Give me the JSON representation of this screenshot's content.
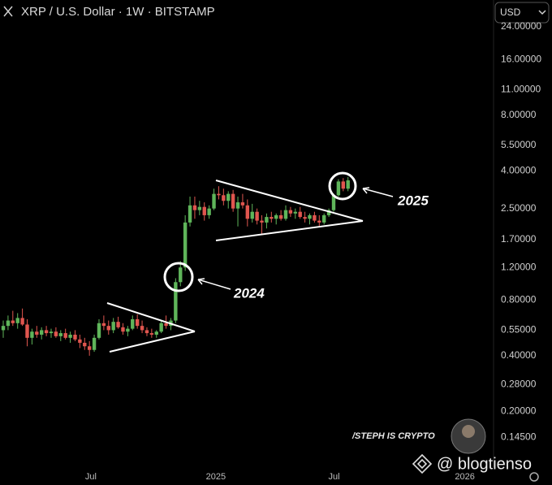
{
  "chart_data": {
    "type": "candlestick",
    "title": "XRP / U.S. Dollar · 1W · BITSTAMP",
    "currency_selector": "USD",
    "log_y": true,
    "up_color": "#5fb55a",
    "down_color": "#e0564f",
    "ylim": [
      0.1,
      33.5
    ],
    "yticks": [
      {
        "value": 0.145,
        "label": "0.14500"
      },
      {
        "value": 0.2,
        "label": "0.20000"
      },
      {
        "value": 0.28,
        "label": "0.28000"
      },
      {
        "value": 0.4,
        "label": "0.40000"
      },
      {
        "value": 0.55,
        "label": "0.55000"
      },
      {
        "value": 0.8,
        "label": "0.80000"
      },
      {
        "value": 1.2,
        "label": "1.20000"
      },
      {
        "value": 1.7,
        "label": "1.70000"
      },
      {
        "value": 2.5,
        "label": "2.50000"
      },
      {
        "value": 4,
        "label": "4.00000"
      },
      {
        "value": 5.5,
        "label": "5.50000"
      },
      {
        "value": 8,
        "label": "8.00000"
      },
      {
        "value": 11,
        "label": "11.00000"
      },
      {
        "value": 16,
        "label": "16.00000"
      },
      {
        "value": 24,
        "label": "24.00000"
      }
    ],
    "xlim": [
      -0.68,
      102.4
    ],
    "xticks": [
      {
        "value": 18.3,
        "label": "Jul"
      },
      {
        "value": 44.4,
        "label": "2025"
      },
      {
        "value": 69.1,
        "label": "Jul"
      },
      {
        "value": 96.4,
        "label": "2026"
      }
    ],
    "ohlc": [
      [
        0.55,
        0.62,
        0.5,
        0.58
      ],
      [
        0.58,
        0.66,
        0.55,
        0.62
      ],
      [
        0.62,
        0.7,
        0.58,
        0.6
      ],
      [
        0.6,
        0.68,
        0.56,
        0.64
      ],
      [
        0.64,
        0.72,
        0.58,
        0.59
      ],
      [
        0.59,
        0.63,
        0.45,
        0.5
      ],
      [
        0.5,
        0.56,
        0.46,
        0.54
      ],
      [
        0.54,
        0.58,
        0.5,
        0.52
      ],
      [
        0.52,
        0.57,
        0.49,
        0.55
      ],
      [
        0.55,
        0.58,
        0.51,
        0.53
      ],
      [
        0.53,
        0.56,
        0.5,
        0.54
      ],
      [
        0.54,
        0.57,
        0.5,
        0.51
      ],
      [
        0.51,
        0.55,
        0.48,
        0.53
      ],
      [
        0.53,
        0.56,
        0.49,
        0.5
      ],
      [
        0.5,
        0.54,
        0.47,
        0.52
      ],
      [
        0.52,
        0.55,
        0.48,
        0.49
      ],
      [
        0.49,
        0.52,
        0.44,
        0.47
      ],
      [
        0.47,
        0.5,
        0.43,
        0.45
      ],
      [
        0.45,
        0.48,
        0.4,
        0.43
      ],
      [
        0.43,
        0.52,
        0.42,
        0.5
      ],
      [
        0.5,
        0.63,
        0.49,
        0.6
      ],
      [
        0.6,
        0.66,
        0.55,
        0.58
      ],
      [
        0.58,
        0.62,
        0.52,
        0.55
      ],
      [
        0.55,
        0.64,
        0.53,
        0.61
      ],
      [
        0.61,
        0.65,
        0.56,
        0.57
      ],
      [
        0.57,
        0.6,
        0.52,
        0.54
      ],
      [
        0.54,
        0.58,
        0.51,
        0.56
      ],
      [
        0.56,
        0.66,
        0.55,
        0.63
      ],
      [
        0.63,
        0.67,
        0.56,
        0.58
      ],
      [
        0.58,
        0.62,
        0.53,
        0.55
      ],
      [
        0.55,
        0.57,
        0.51,
        0.53
      ],
      [
        0.53,
        0.56,
        0.5,
        0.52
      ],
      [
        0.52,
        0.55,
        0.5,
        0.54
      ],
      [
        0.54,
        0.62,
        0.53,
        0.6
      ],
      [
        0.6,
        0.66,
        0.56,
        0.58
      ],
      [
        0.58,
        0.64,
        0.55,
        0.62
      ],
      [
        0.62,
        1.05,
        0.6,
        1.0
      ],
      [
        1.0,
        1.3,
        0.95,
        1.2
      ],
      [
        1.2,
        2.3,
        1.15,
        2.1
      ],
      [
        2.1,
        2.9,
        2.0,
        2.6
      ],
      [
        2.6,
        2.9,
        2.2,
        2.45
      ],
      [
        2.45,
        2.75,
        2.3,
        2.55
      ],
      [
        2.55,
        2.7,
        2.15,
        2.3
      ],
      [
        2.3,
        2.6,
        2.2,
        2.5
      ],
      [
        2.5,
        3.2,
        2.45,
        3.0
      ],
      [
        3.0,
        3.3,
        2.8,
        2.95
      ],
      [
        2.95,
        3.2,
        2.6,
        2.75
      ],
      [
        2.75,
        3.1,
        2.5,
        3.0
      ],
      [
        3.0,
        3.15,
        2.4,
        2.5
      ],
      [
        2.5,
        2.9,
        2.0,
        2.7
      ],
      [
        2.7,
        3.0,
        2.5,
        2.6
      ],
      [
        2.6,
        2.8,
        2.0,
        2.2
      ],
      [
        2.2,
        2.65,
        2.1,
        2.4
      ],
      [
        2.4,
        2.5,
        2.05,
        2.15
      ],
      [
        2.15,
        2.3,
        1.8,
        2.1
      ],
      [
        2.1,
        2.35,
        1.95,
        2.25
      ],
      [
        2.25,
        2.4,
        2.1,
        2.2
      ],
      [
        2.2,
        2.35,
        2.05,
        2.3
      ],
      [
        2.3,
        2.45,
        2.15,
        2.2
      ],
      [
        2.2,
        2.6,
        2.15,
        2.45
      ],
      [
        2.45,
        2.55,
        2.25,
        2.35
      ],
      [
        2.35,
        2.5,
        2.2,
        2.4
      ],
      [
        2.4,
        2.55,
        2.2,
        2.25
      ],
      [
        2.25,
        2.4,
        2.1,
        2.2
      ],
      [
        2.2,
        2.35,
        2.05,
        2.3
      ],
      [
        2.3,
        2.4,
        2.1,
        2.15
      ],
      [
        2.15,
        2.3,
        2.0,
        2.1
      ],
      [
        2.1,
        2.35,
        2.05,
        2.3
      ],
      [
        2.3,
        2.5,
        2.25,
        2.45
      ],
      [
        2.45,
        3.0,
        2.4,
        2.95
      ],
      [
        2.95,
        3.6,
        2.9,
        3.5
      ],
      [
        3.5,
        3.65,
        3.1,
        3.2
      ],
      [
        3.2,
        3.7,
        3.1,
        3.55
      ]
    ],
    "annotations": [
      "2024",
      "2025"
    ],
    "author": "/STEPH IS CRYPTO",
    "watermark": "@ blogtienso"
  }
}
